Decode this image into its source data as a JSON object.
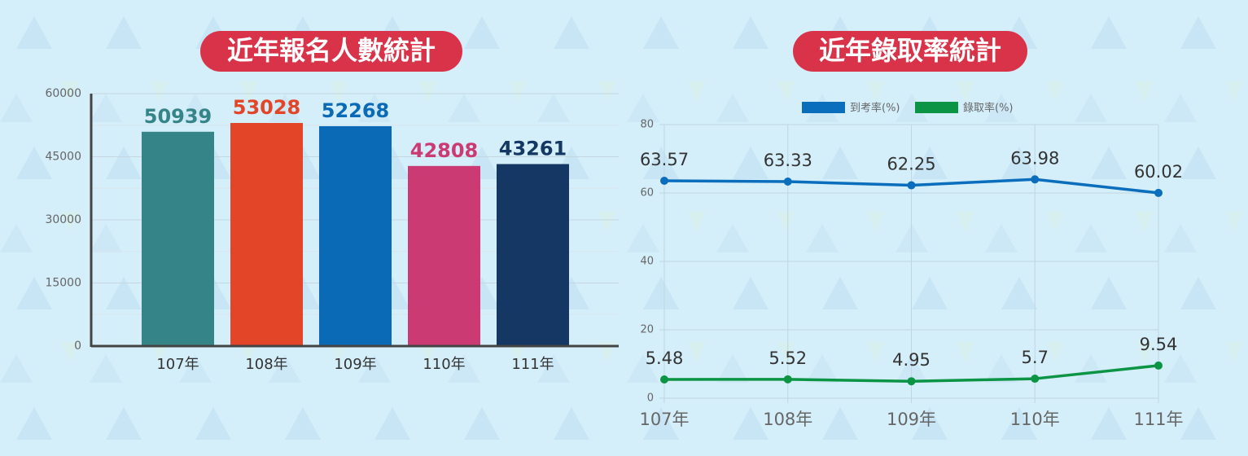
{
  "chart_data": [
    {
      "type": "bar",
      "title": "近年報名人數統計",
      "categories": [
        "107年",
        "108年",
        "109年",
        "110年",
        "111年"
      ],
      "values": [
        50939,
        53028,
        52268,
        42808,
        43261
      ],
      "colors": [
        "#358487",
        "#e24527",
        "#0a6ab5",
        "#cc3a74",
        "#143863"
      ],
      "ylim": [
        0,
        60000
      ],
      "yticks": [
        0,
        15000,
        30000,
        45000,
        60000
      ],
      "grid": true
    },
    {
      "type": "line",
      "title": "近年錄取率統計",
      "categories": [
        "107年",
        "108年",
        "109年",
        "110年",
        "111年"
      ],
      "series": [
        {
          "name": "到考率(%)",
          "color": "#0a6ebd",
          "values": [
            63.57,
            63.33,
            62.25,
            63.98,
            60.02
          ]
        },
        {
          "name": "錄取率(%)",
          "color": "#0a9444",
          "values": [
            5.48,
            5.52,
            4.95,
            5.7,
            9.54
          ]
        }
      ],
      "ylim": [
        0,
        80
      ],
      "yticks": [
        0,
        20,
        40,
        60,
        80
      ],
      "grid": true,
      "legend": "top"
    }
  ]
}
